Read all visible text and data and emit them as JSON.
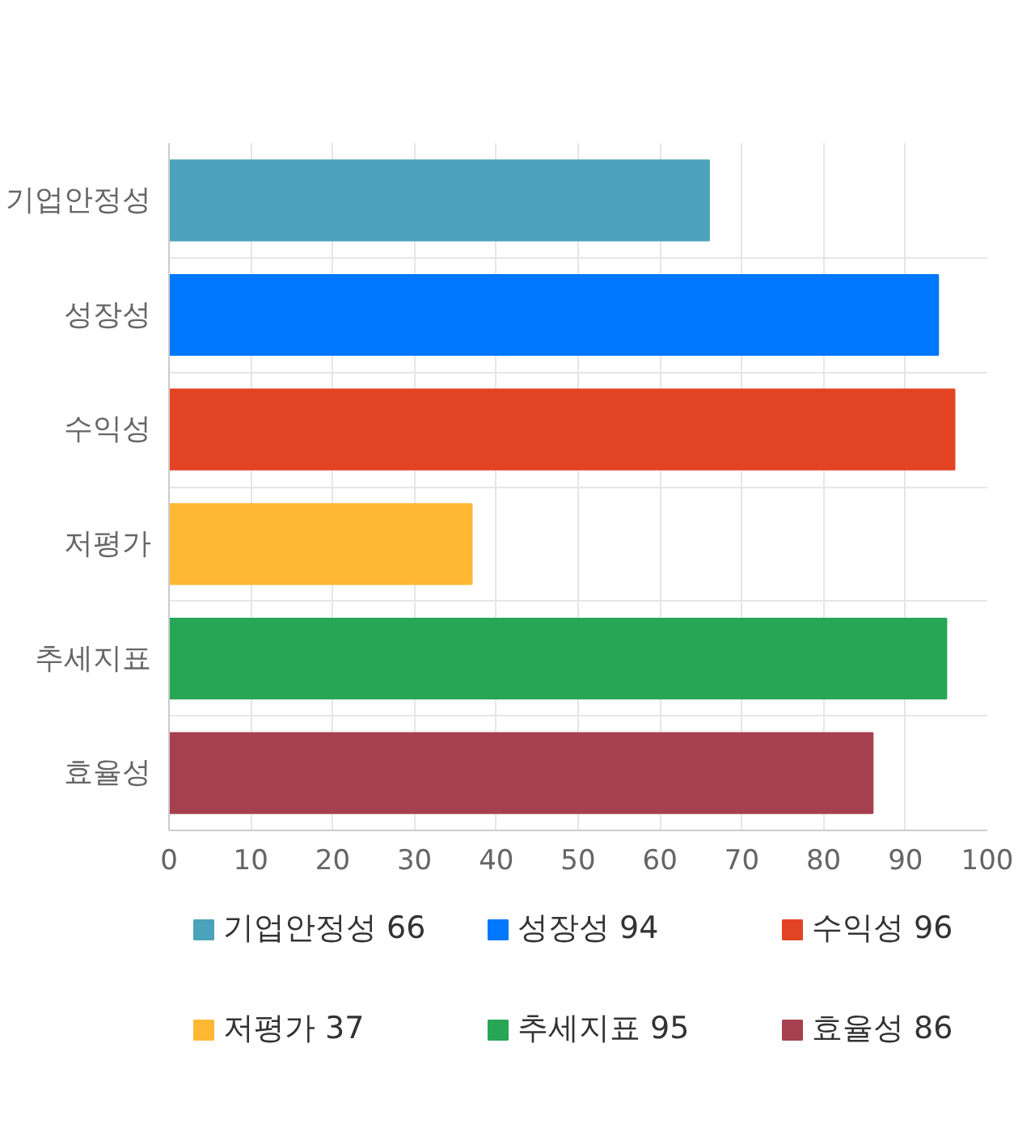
{
  "chart_data": {
    "type": "bar",
    "orientation": "horizontal",
    "categories": [
      "기업안정성",
      "성장성",
      "수익성",
      "저평가",
      "추세지표",
      "효율성"
    ],
    "series": [
      {
        "name": "기업안정성 66",
        "color": "#4aa3ba",
        "values": [
          66,
          null,
          null,
          null,
          null,
          null
        ]
      },
      {
        "name": "성장성 94",
        "color": "#0077ff",
        "values": [
          null,
          94,
          null,
          null,
          null,
          null
        ]
      },
      {
        "name": "수익성 96",
        "color": "#e24423",
        "values": [
          null,
          null,
          96,
          null,
          null,
          null
        ]
      },
      {
        "name": "저평가 37",
        "color": "#ffb833",
        "values": [
          null,
          null,
          null,
          37,
          null,
          null
        ]
      },
      {
        "name": "추세지표 95",
        "color": "#27a655",
        "values": [
          null,
          null,
          null,
          null,
          95,
          null
        ]
      },
      {
        "name": "효율성 86",
        "color": "#a6404f",
        "values": [
          null,
          null,
          null,
          null,
          null,
          86
        ]
      }
    ],
    "xlim": [
      0,
      100
    ],
    "xticks": [
      0,
      10,
      20,
      30,
      40,
      50,
      60,
      70,
      80,
      90,
      100
    ],
    "grid": true,
    "legend": "bottom"
  }
}
